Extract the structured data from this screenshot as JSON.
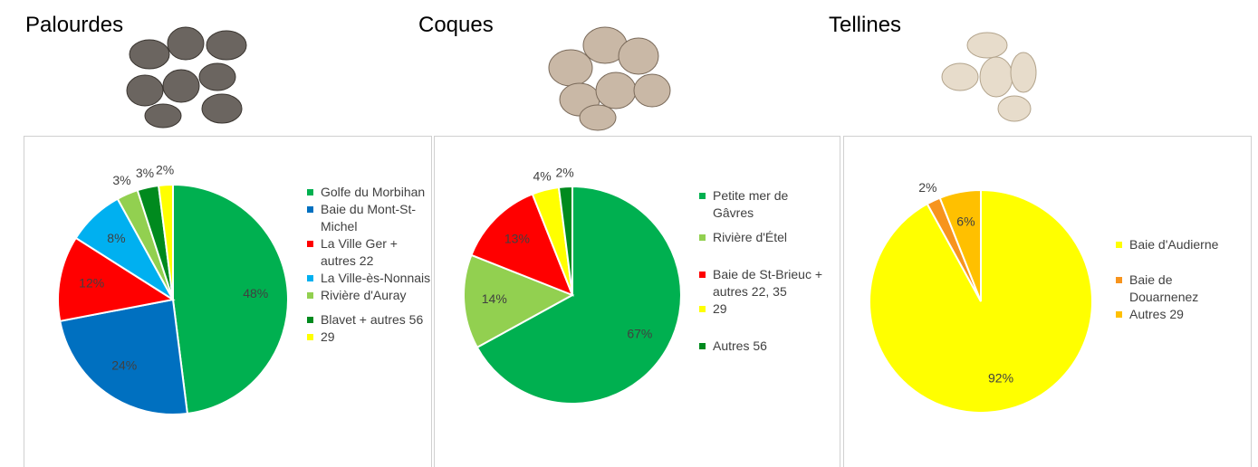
{
  "chart_data": [
    {
      "type": "pie",
      "title": "Palourdes",
      "categories": [
        "Golfe du Morbihan",
        "Baie du Mont-St-Michel",
        "La Ville Ger + autres 22",
        "La Ville-ès-Nonnais",
        "Rivière d'Auray",
        "Blavet + autres 56",
        "29"
      ],
      "values": [
        48,
        24,
        12,
        8,
        3,
        3,
        2
      ],
      "value_labels": [
        "48%",
        "24%",
        "12%",
        "8%",
        "3%",
        "3%",
        "2%"
      ],
      "colors": [
        "#00b050",
        "#0070c0",
        "#ff0000",
        "#00b0f0",
        "#92d050",
        "#008a1e",
        "#ffff00"
      ]
    },
    {
      "type": "pie",
      "title": "Coques",
      "categories": [
        "Petite mer de Gâvres",
        "Rivière d'Étel",
        "Baie de St-Brieuc + autres 22, 35",
        "29",
        "Autres 56"
      ],
      "values": [
        67,
        14,
        13,
        4,
        2
      ],
      "value_labels": [
        "67%",
        "14%",
        "13%",
        "4%",
        "2%"
      ],
      "colors": [
        "#00b050",
        "#92d050",
        "#ff0000",
        "#ffff00",
        "#008a1e"
      ]
    },
    {
      "type": "pie",
      "title": "Tellines",
      "categories": [
        "Baie d'Audierne",
        "Baie de Douarnenez",
        "Autres 29"
      ],
      "values": [
        92,
        2,
        6
      ],
      "value_labels": [
        "92%",
        "2%",
        "6%"
      ],
      "colors": [
        "#ffff00",
        "#f7941d",
        "#ffc000"
      ]
    }
  ]
}
